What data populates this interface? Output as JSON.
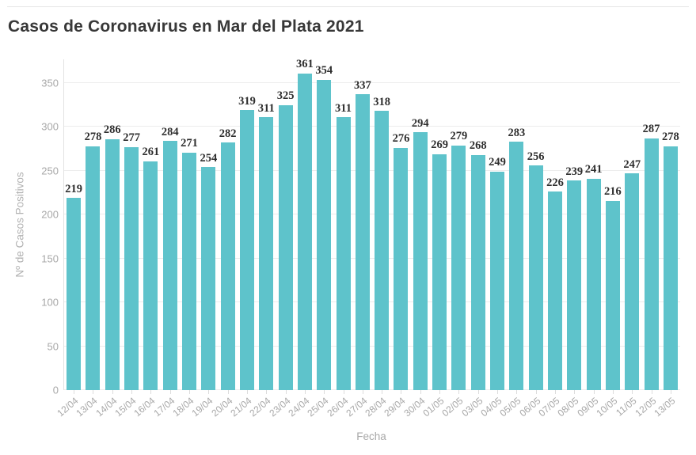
{
  "header": {
    "title": "Casos de Coronavirus en Mar del Plata 2021"
  },
  "chart_data": {
    "type": "bar",
    "title": "Casos de Coronavirus en Mar del Plata 2021",
    "xlabel": "Fecha",
    "ylabel": "Nº de Casos Positivos",
    "categories": [
      "12/04",
      "13/04",
      "14/04",
      "15/04",
      "16/04",
      "17/04",
      "18/04",
      "19/04",
      "20/04",
      "21/04",
      "22/04",
      "23/04",
      "24/04",
      "25/04",
      "26/04",
      "27/04",
      "28/04",
      "29/04",
      "30/04",
      "01/05",
      "02/05",
      "03/05",
      "04/05",
      "05/05",
      "06/05",
      "07/05",
      "08/05",
      "09/05",
      "10/05",
      "11/05",
      "12/05",
      "13/05"
    ],
    "values": [
      219,
      278,
      286,
      277,
      261,
      284,
      271,
      254,
      282,
      319,
      311,
      325,
      361,
      354,
      311,
      337,
      318,
      276,
      294,
      269,
      279,
      268,
      249,
      283,
      256,
      226,
      239,
      241,
      216,
      247,
      287,
      278
    ],
    "yticks": [
      0,
      50,
      100,
      150,
      200,
      250,
      300,
      350
    ],
    "ylim": [
      0,
      377
    ],
    "grid": true,
    "legend": "none",
    "data_labels": true,
    "colors": {
      "bar": "#5ec3cb",
      "value_label": "#2e2e2e",
      "axis_text": "#a8a8a8",
      "grid_line": "#ececec",
      "title_text": "#383838"
    }
  }
}
